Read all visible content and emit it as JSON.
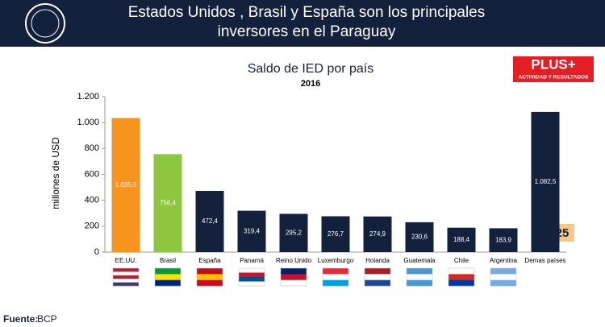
{
  "header": {
    "title_lines": [
      "Estados Unidos , Brasil y España son los principales",
      "inversores en el Paraguay"
    ]
  },
  "logo": {
    "text": "PLUS+",
    "tagline": "ACTIVIDAD Y RESULTADOS"
  },
  "page_number": "25",
  "footer": {
    "label": "Fuente:",
    "value": "BCP"
  },
  "chart_data": {
    "type": "bar",
    "title": "Saldo de IED por país",
    "subtitle": "2016",
    "y_label": "millones de USD",
    "categories": [
      "EE.UU.",
      "Brasil",
      "España",
      "Panamá",
      "Reino Unido",
      "Luxemburgo",
      "Holanda",
      "Guatemala",
      "Chile",
      "Argentina",
      "Demas países"
    ],
    "values": [
      1035.0,
      756.4,
      472.4,
      319.4,
      295.2,
      276.7,
      274.9,
      230.6,
      188.4,
      183.9,
      1082.5
    ],
    "value_labels": [
      "1.035,0",
      "756,4",
      "472,4",
      "319,4",
      "295,2",
      "276,7",
      "274,9",
      "230,6",
      "188,4",
      "183,9",
      "1.082,5"
    ],
    "colors": [
      "#f7941d",
      "#8dc63f",
      "#14213d",
      "#14213d",
      "#14213d",
      "#14213d",
      "#14213d",
      "#14213d",
      "#14213d",
      "#14213d",
      "#14213d"
    ],
    "ylim": [
      0,
      1200
    ],
    "yticks": [
      0,
      200,
      400,
      600,
      800,
      {
        "value": 1000,
        "label": "1.000"
      },
      {
        "value": 1200,
        "label": "1.200"
      }
    ],
    "grid": false
  }
}
